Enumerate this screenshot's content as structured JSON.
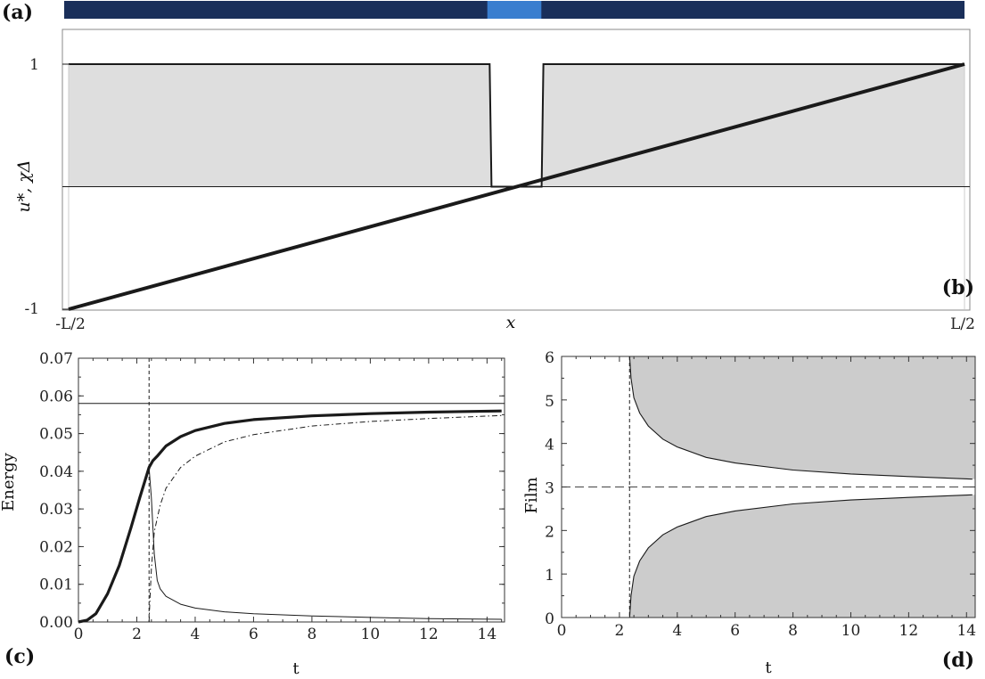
{
  "colors": {
    "strip_dark": "#1a2f5a",
    "strip_bright": "#3a7ecf",
    "fill_gray": "#dedede",
    "fill_gray_d": "#cccccc",
    "line": "#1a1a1a"
  },
  "chart_data": [
    {
      "id": "a",
      "type": "heatmap",
      "panel_label": "(a)",
      "x": [
        -0.5,
        -0.03,
        0.0,
        0.03,
        0.5
      ],
      "values": [
        -1,
        -1,
        0,
        -1,
        -1
      ],
      "xlim": [
        -0.5,
        0.5
      ]
    },
    {
      "id": "b",
      "type": "line",
      "panel_label": "(b)",
      "xlabel": "x",
      "ylabel": "u*, χΔ",
      "xlim": [
        -0.5,
        0.5
      ],
      "ylim": [
        -1,
        1
      ],
      "xtick_labels": [
        "-L/2",
        "L/2"
      ],
      "ytick_values": [
        1,
        -1
      ],
      "ytick_labels": [
        "1",
        "-1"
      ],
      "series": [
        {
          "style": "filled-step",
          "x": [
            -0.5,
            -0.03,
            -0.028,
            0.028,
            0.03,
            0.5
          ],
          "y": [
            1,
            1,
            0,
            0,
            1,
            1
          ]
        },
        {
          "style": "thick",
          "x": [
            -0.5,
            0.5
          ],
          "y": [
            -1,
            1
          ]
        },
        {
          "style": "reference",
          "x": [
            -0.5,
            0.5
          ],
          "y": [
            0,
            0
          ]
        }
      ]
    },
    {
      "id": "c",
      "type": "line",
      "panel_label": "(c)",
      "xlabel": "t",
      "ylabel": "Energy",
      "xlim": [
        0,
        14.6
      ],
      "ylim": [
        0,
        0.07
      ],
      "xticks": [
        0,
        2,
        4,
        6,
        8,
        10,
        12,
        14
      ],
      "xtick_labels": [
        "0",
        "2",
        "4",
        "6",
        "8",
        "10",
        "12",
        "14"
      ],
      "yticks": [
        0,
        0.01,
        0.02,
        0.03,
        0.04,
        0.05,
        0.06,
        0.07
      ],
      "ytick_labels": [
        "0.00",
        "0.01",
        "0.02",
        "0.03",
        "0.04",
        "0.05",
        "0.06",
        "0.07"
      ],
      "vline_t": 2.42,
      "hline_y": 0.058,
      "series": [
        {
          "style": "thick",
          "x": [
            0,
            0.3,
            0.6,
            1.0,
            1.4,
            1.8,
            2.1,
            2.42,
            2.55,
            2.7,
            3,
            3.5,
            4,
            5,
            6,
            8,
            10,
            12,
            14.5
          ],
          "y": [
            0,
            0.0005,
            0.0022,
            0.0075,
            0.015,
            0.025,
            0.033,
            0.041,
            0.0428,
            0.044,
            0.0467,
            0.0492,
            0.0508,
            0.0527,
            0.0537,
            0.0547,
            0.0553,
            0.0557,
            0.056
          ]
        },
        {
          "style": "thin",
          "x": [
            2.42,
            2.5,
            2.6,
            2.7,
            2.8,
            3.0,
            3.5,
            4,
            5,
            6,
            8,
            10,
            12,
            14.5
          ],
          "y": [
            0.041,
            0.033,
            0.018,
            0.011,
            0.0088,
            0.0068,
            0.0047,
            0.0037,
            0.0027,
            0.0022,
            0.0016,
            0.0012,
            0.0009,
            0.0007
          ]
        },
        {
          "style": "dashdot",
          "x": [
            2.42,
            2.45,
            2.5,
            2.6,
            2.8,
            3.0,
            3.5,
            4,
            5,
            6,
            8,
            10,
            12,
            14.5
          ],
          "y": [
            0,
            0.006,
            0.014,
            0.024,
            0.031,
            0.0355,
            0.041,
            0.044,
            0.0478,
            0.0497,
            0.052,
            0.0532,
            0.054,
            0.0548
          ]
        }
      ]
    },
    {
      "id": "d",
      "type": "area",
      "panel_label": "(d)",
      "xlabel": "t",
      "ylabel": "Film",
      "xlim": [
        0,
        14.3
      ],
      "ylim": [
        0,
        6
      ],
      "xticks": [
        0,
        2,
        4,
        6,
        8,
        10,
        12,
        14
      ],
      "xtick_labels": [
        "0",
        "2",
        "4",
        "6",
        "8",
        "10",
        "12",
        "14"
      ],
      "yticks": [
        0,
        1,
        2,
        3,
        4,
        5,
        6
      ],
      "ytick_labels": [
        "0",
        "1",
        "2",
        "3",
        "4",
        "5",
        "6"
      ],
      "vline_t": 2.35,
      "hline_y": 3,
      "series": [
        {
          "style": "upper-boundary",
          "x": [
            2.35,
            2.4,
            2.5,
            2.7,
            3,
            3.5,
            4,
            5,
            6,
            8,
            10,
            12,
            14.2
          ],
          "y": [
            6.0,
            5.5,
            5.05,
            4.7,
            4.4,
            4.1,
            3.92,
            3.68,
            3.55,
            3.39,
            3.3,
            3.24,
            3.18
          ]
        },
        {
          "style": "lower-boundary",
          "x": [
            2.35,
            2.4,
            2.5,
            2.7,
            3,
            3.5,
            4,
            5,
            6,
            8,
            10,
            12,
            14.2
          ],
          "y": [
            0.0,
            0.5,
            0.95,
            1.3,
            1.6,
            1.9,
            2.08,
            2.32,
            2.45,
            2.61,
            2.7,
            2.76,
            2.82
          ]
        }
      ]
    }
  ]
}
